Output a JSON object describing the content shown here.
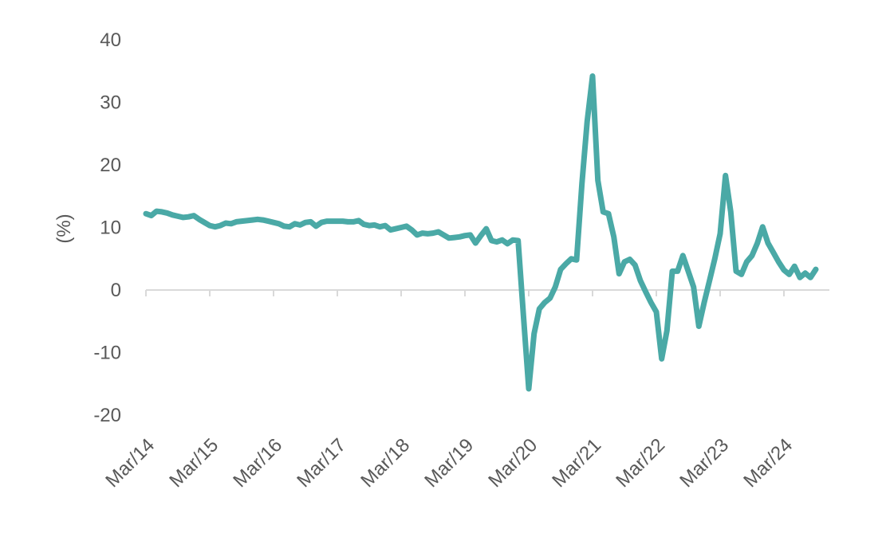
{
  "chart_data": {
    "type": "line",
    "y_label": "(%)",
    "categories": [
      "Mar/14",
      null,
      null,
      null,
      null,
      null,
      null,
      null,
      null,
      null,
      null,
      null,
      "Mar/15",
      null,
      null,
      null,
      null,
      null,
      null,
      null,
      null,
      null,
      null,
      null,
      "Mar/16",
      null,
      null,
      null,
      null,
      null,
      null,
      null,
      null,
      null,
      null,
      null,
      "Mar/17",
      null,
      null,
      null,
      null,
      null,
      null,
      null,
      null,
      null,
      null,
      null,
      "Mar/18",
      null,
      null,
      null,
      null,
      null,
      null,
      null,
      null,
      null,
      null,
      null,
      "Mar/19",
      null,
      null,
      null,
      null,
      null,
      null,
      null,
      null,
      null,
      null,
      null,
      "Mar/20",
      null,
      null,
      null,
      null,
      null,
      null,
      null,
      null,
      null,
      null,
      null,
      "Mar/21",
      null,
      null,
      null,
      null,
      null,
      null,
      null,
      null,
      null,
      null,
      null,
      "Mar/22",
      null,
      null,
      null,
      null,
      null,
      null,
      null,
      null,
      null,
      null,
      null,
      "Mar/23",
      null,
      null,
      null,
      null,
      null,
      null,
      null,
      null,
      null,
      null,
      null,
      "Mar/24",
      null,
      null,
      null,
      null,
      null,
      null
    ],
    "values": [
      12.2,
      11.9,
      12.6,
      12.5,
      12.3,
      12.0,
      11.8,
      11.6,
      11.7,
      11.9,
      11.3,
      10.8,
      10.3,
      10.1,
      10.3,
      10.7,
      10.6,
      10.9,
      11.0,
      11.1,
      11.2,
      11.3,
      11.2,
      11.0,
      10.8,
      10.6,
      10.2,
      10.1,
      10.6,
      10.4,
      10.8,
      10.9,
      10.2,
      10.8,
      11.0,
      11.0,
      11.0,
      11.0,
      10.9,
      10.9,
      11.1,
      10.5,
      10.3,
      10.4,
      10.1,
      10.3,
      9.6,
      9.8,
      10.0,
      10.2,
      9.6,
      8.8,
      9.1,
      9.0,
      9.1,
      9.3,
      8.8,
      8.3,
      8.4,
      8.5,
      8.7,
      8.8,
      7.5,
      8.7,
      9.8,
      7.9,
      7.7,
      8.0,
      7.4,
      8.0,
      7.9,
      -4,
      -15.8,
      -7,
      -3,
      -2,
      -1.3,
      0.5,
      3.3,
      4.2,
      5.0,
      4.8,
      17,
      27,
      34.2,
      17.5,
      12.5,
      12.2,
      8.5,
      2.6,
      4.5,
      4.9,
      4.0,
      1.5,
      -0.3,
      -2,
      -3.5,
      -11,
      -6.5,
      3.0,
      3.0,
      5.5,
      3.0,
      0.5,
      -5.8,
      -2,
      1.5,
      5,
      9,
      18.3,
      12.5,
      3.0,
      2.5,
      4.5,
      5.5,
      7.5,
      10.1,
      7.5,
      6.0,
      4.5,
      3.2,
      2.5,
      3.8,
      2.0,
      2.7,
      2.0,
      3.3
    ],
    "color": "#4aa9a6",
    "ylim": [
      -20,
      40
    ],
    "yticks": [
      -20,
      -10,
      0,
      10,
      20,
      30,
      40
    ],
    "grid": false
  }
}
